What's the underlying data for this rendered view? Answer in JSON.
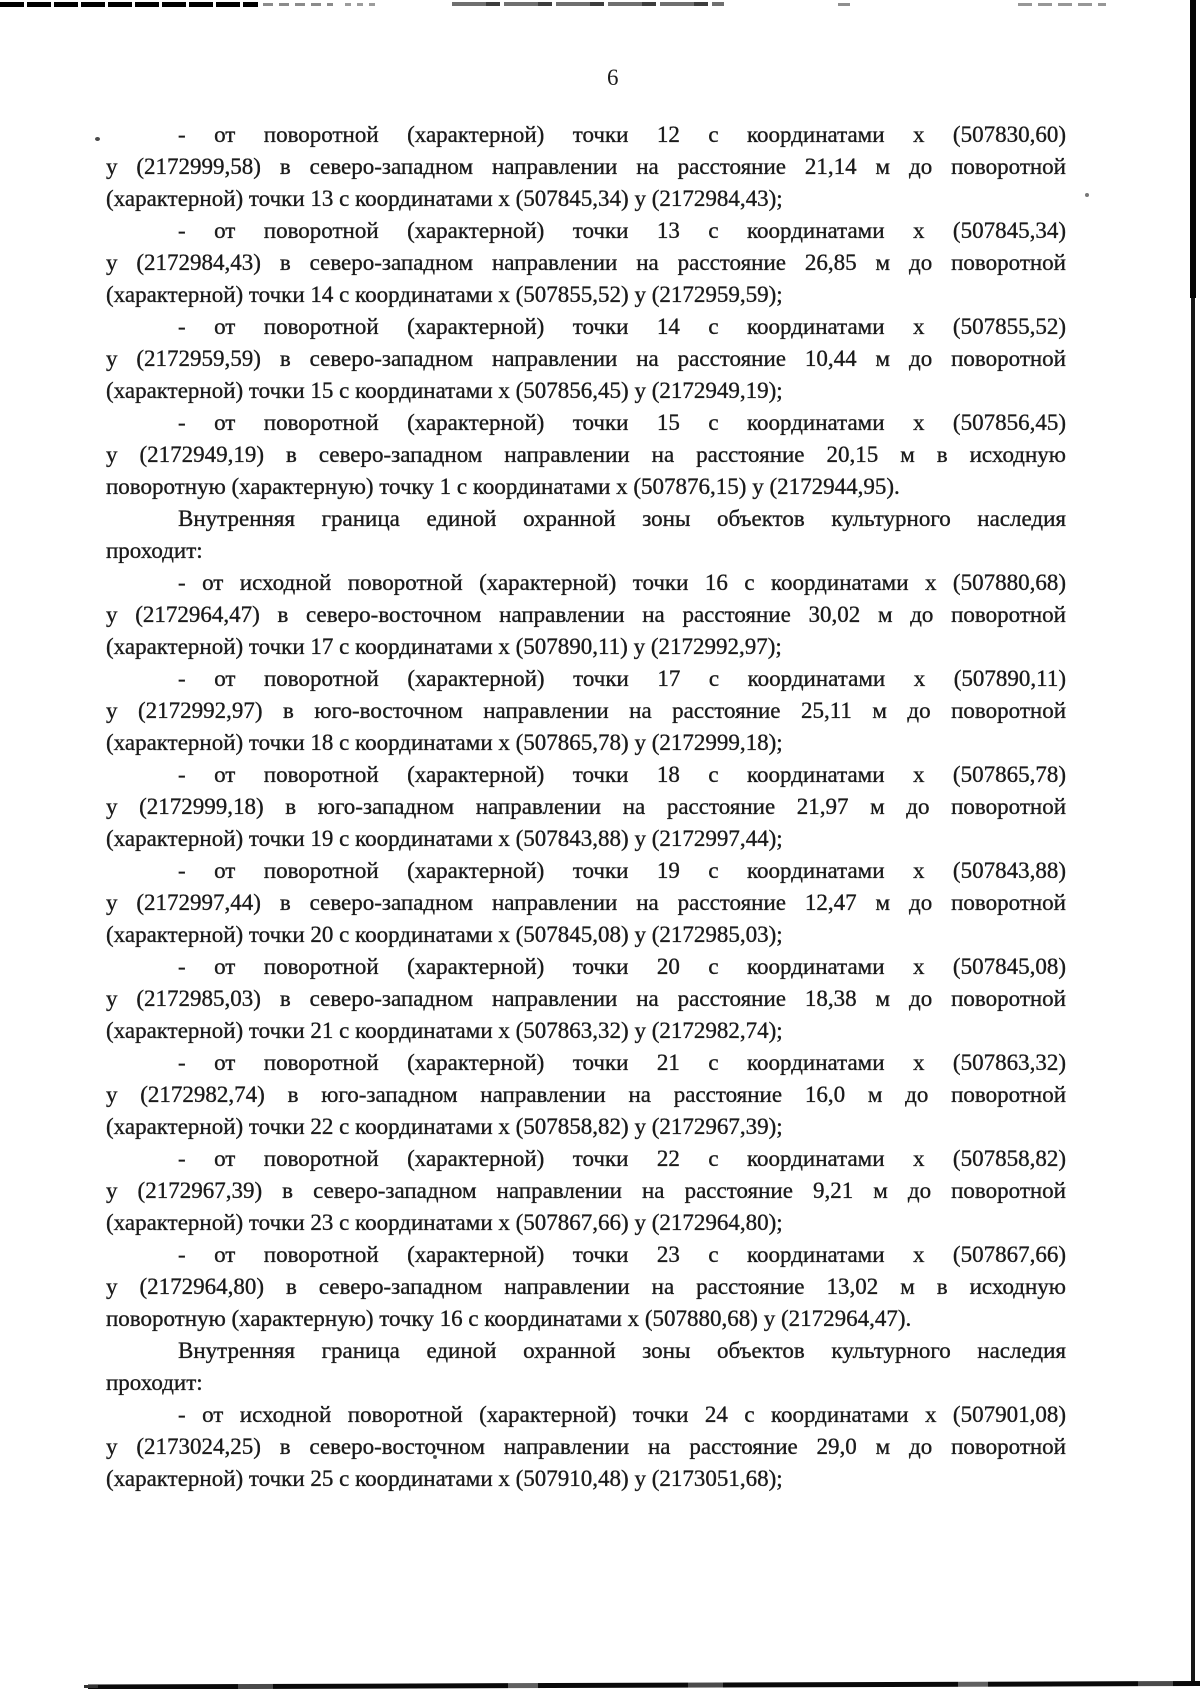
{
  "theme": {
    "paper": "#ffffff",
    "ink": "#1b1b1b"
  },
  "page": {
    "number": "6"
  },
  "document": {
    "paragraphs": [
      {
        "lines": [
          "- от поворотной (характерной) точки 12 с координатами х (507830,60)",
          "у (2172999,58) в северо-западном направлении на расстояние 21,14 м до поворотной",
          "(характерной) точки 13 с координатами х (507845,34) у (2172984,43);"
        ]
      },
      {
        "lines": [
          "- от поворотной (характерной) точки 13 с координатами х (507845,34)",
          "у (2172984,43) в северо-западном направлении на расстояние 26,85 м до поворотной",
          "(характерной) точки 14 с координатами х (507855,52) у (2172959,59);"
        ]
      },
      {
        "lines": [
          "- от поворотной (характерной) точки 14 с координатами х (507855,52)",
          "у (2172959,59) в северо-западном направлении на расстояние 10,44 м до поворотной",
          "(характерной) точки 15 с координатами х (507856,45) у (2172949,19);"
        ]
      },
      {
        "lines": [
          "- от поворотной (характерной) точки 15 с координатами х (507856,45)",
          "у (2172949,19) в северо-западном направлении на расстояние 20,15 м в исходную",
          "поворотную (характерную) точку 1 с координатами х (507876,15) у (2172944,95)."
        ]
      },
      {
        "lines": [
          "Внутренняя граница единой охранной зоны объектов культурного наследия",
          "проходит:"
        ]
      },
      {
        "lines": [
          "- от исходной поворотной (характерной) точки 16 с координатами х (507880,68)",
          "у (2172964,47) в северо-восточном направлении на расстояние 30,02 м до поворотной",
          "(характерной) точки 17 с координатами х (507890,11) у (2172992,97);"
        ]
      },
      {
        "lines": [
          "- от поворотной (характерной) точки 17 с координатами х (507890,11)",
          "у (2172992,97) в юго-восточном направлении на расстояние 25,11 м до поворотной",
          "(характерной) точки 18 с координатами х (507865,78) у (2172999,18);"
        ]
      },
      {
        "lines": [
          "- от поворотной (характерной) точки 18 с координатами х (507865,78)",
          "у (2172999,18) в юго-западном направлении на расстояние 21,97 м до поворотной",
          "(характерной) точки 19 с координатами х (507843,88) у (2172997,44);"
        ]
      },
      {
        "lines": [
          "- от поворотной (характерной) точки 19 с координатами х (507843,88)",
          "у (2172997,44) в северо-западном направлении на расстояние 12,47 м до поворотной",
          "(характерной) точки 20 с координатами х (507845,08) у (2172985,03);"
        ]
      },
      {
        "lines": [
          "- от поворотной (характерной) точки 20 с координатами х (507845,08)",
          "у (2172985,03) в северо-западном направлении на расстояние 18,38 м до поворотной",
          "(характерной) точки 21 с координатами х (507863,32) у (2172982,74);"
        ]
      },
      {
        "lines": [
          "- от поворотной (характерной) точки 21 с координатами х (507863,32)",
          "у (2172982,74) в юго-западном направлении на расстояние 16,0 м до поворотной",
          "(характерной) точки 22 с координатами х (507858,82) у (2172967,39);"
        ]
      },
      {
        "lines": [
          "- от поворотной (характерной) точки 22 с координатами х (507858,82)",
          "у (2172967,39) в северо-западном направлении на расстояние 9,21 м до поворотной",
          "(характерной) точки 23 с координатами х (507867,66) у (2172964,80);"
        ]
      },
      {
        "lines": [
          "- от поворотной (характерной) точки 23 с координатами х (507867,66)",
          "у (2172964,80) в северо-западном направлении на расстояние 13,02 м в исходную",
          "поворотную (характерную) точку 16 с координатами х (507880,68) у (2172964,47)."
        ]
      },
      {
        "lines": [
          "Внутренняя граница единой охранной зоны объектов культурного наследия",
          "проходит:"
        ]
      },
      {
        "lines": [
          "- от исходной поворотной (характерной) точки 24 с координатами х (507901,08)",
          "у (2173024,25) в северо-восточном направлении на расстояние 29,0 м до поворотной",
          "(характерной) точки 25 с координатами х (507910,48) у (2173051,68);"
        ]
      }
    ]
  }
}
